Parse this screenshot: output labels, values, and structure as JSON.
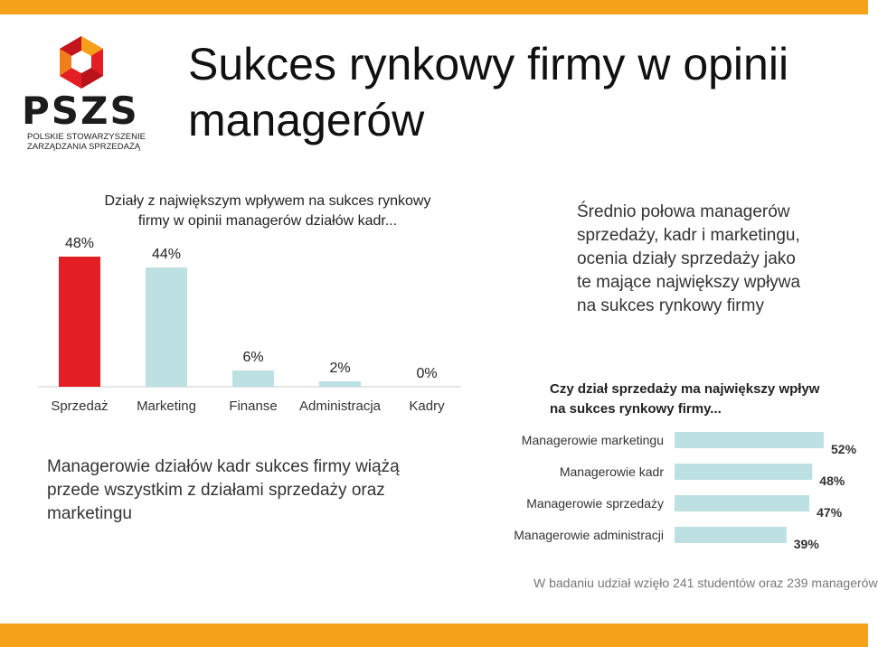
{
  "header": {
    "title": "Sukces rynkowy firmy w opinii managerów",
    "logo": {
      "name": "PSZS",
      "subtitle_line1": "POLSKIE STOWARZYSZENIE",
      "subtitle_line2": "ZARZĄDZANIA SPRZEDAŻĄ"
    },
    "accent_color": "#f5a21a"
  },
  "left_block": {
    "text": "Managerowie działów kadr sukces firmy wiążą przede wszystkim z działami sprzedaży oraz marketingu"
  },
  "right_block": {
    "text": "Średnio połowa managerów sprzedaży, kadr i marketingu, ocenia działy sprzedaży jako te mające największy wpływa na sukces rynkowy firmy"
  },
  "footnote": "W badaniu udział wzięło 241 studentów oraz 239 managerów",
  "chart_data": [
    {
      "type": "bar",
      "title": "Działy z największym wpływem na sukces rynkowy firmy w opinii managerów działów kadr...",
      "categories": [
        "Sprzedaż",
        "Marketing",
        "Finanse",
        "Administracja",
        "Kadry"
      ],
      "values": [
        48,
        44,
        6,
        2,
        0
      ],
      "value_labels": [
        "48%",
        "44%",
        "6%",
        "2%",
        "0%"
      ],
      "colors": [
        "#e31e24",
        "#bde0e3",
        "#bde0e3",
        "#bde0e3",
        "#bde0e3"
      ],
      "ylim": [
        0,
        50
      ],
      "unit": "%",
      "grid": false
    },
    {
      "type": "bar",
      "orientation": "horizontal",
      "title": "Czy dział sprzedaży ma największy wpływ na sukces rynkowy firmy...",
      "categories": [
        "Managerowie marketingu",
        "Managerowie kadr",
        "Managerowie sprzedaży",
        "Managerowie administracji"
      ],
      "values": [
        52,
        48,
        47,
        39
      ],
      "value_labels": [
        "52%",
        "48%",
        "47%",
        "39%"
      ],
      "color": "#bde0e3",
      "xlim": [
        0,
        55
      ],
      "unit": "%",
      "grid": false
    }
  ]
}
